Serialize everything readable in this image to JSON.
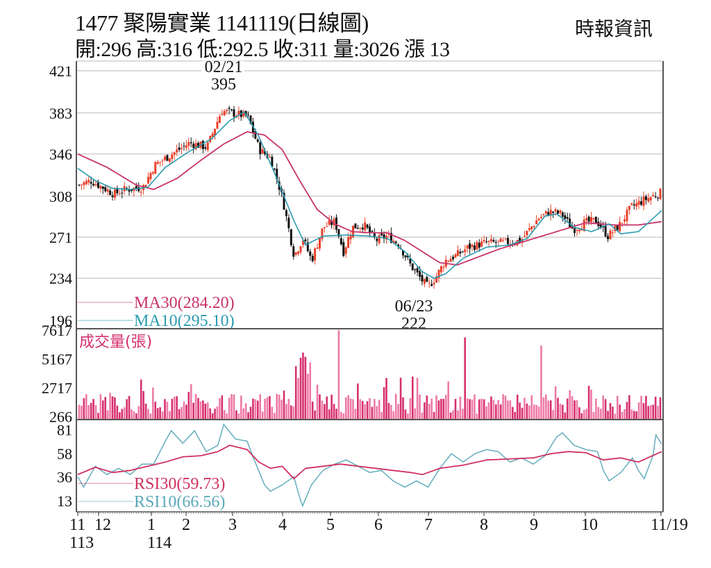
{
  "header": {
    "title": "1477  聚陽實業 1141119(日線圖)",
    "stock_code": "1477",
    "stock_name": "聚陽實業",
    "date": "1141119",
    "chart_kind": "日線圖",
    "ohlc_line": "開:296 高:316 低:292.5 收:311 量:3026 漲 13",
    "open": "296",
    "high": "316",
    "low": "292.5",
    "close": "311",
    "volume": "3026",
    "change": "漲 13",
    "brand": "時報資訊"
  },
  "colors": {
    "up": "#e8402a",
    "down": "#111111",
    "ma30": "#c8336b",
    "ma10": "#2b9bb0",
    "volume": "#d6306e",
    "volume_light": "#ee7aa6",
    "rsi30": "#d0305f",
    "rsi10": "#5aa8b8",
    "grid": "#cfcfcf",
    "axis": "#555555"
  },
  "chart_data": [
    {
      "type": "candlestick",
      "title": "1477 聚陽實業 1141119(日線圖)",
      "ylabel": "Price",
      "yticks": [
        196,
        234,
        271,
        308,
        346,
        383,
        421
      ],
      "ylim": [
        196,
        421
      ],
      "grid": true,
      "x_month_ticks": [
        "11",
        "12",
        "1",
        "2",
        "3",
        "4",
        "5",
        "6",
        "7",
        "8",
        "9",
        "10",
        "11/19"
      ],
      "x_year_labels": [
        {
          "label": "113",
          "under": "11"
        },
        {
          "label": "114",
          "under": "1"
        }
      ],
      "annotations": [
        {
          "date": "02/21",
          "value": "395",
          "type": "high"
        },
        {
          "date": "06/23",
          "value": "222",
          "type": "low"
        }
      ],
      "legend": [
        {
          "name": "MA30",
          "label": "MA30(284.20)",
          "value": 284.2
        },
        {
          "name": "MA10",
          "label": "MA10(295.10)",
          "value": 295.1
        }
      ],
      "close_path": [
        {
          "x": 0.0,
          "v": 318
        },
        {
          "x": 0.02,
          "v": 322
        },
        {
          "x": 0.04,
          "v": 316
        },
        {
          "x": 0.06,
          "v": 310
        },
        {
          "x": 0.08,
          "v": 314
        },
        {
          "x": 0.11,
          "v": 316
        },
        {
          "x": 0.13,
          "v": 336
        },
        {
          "x": 0.16,
          "v": 346
        },
        {
          "x": 0.19,
          "v": 356
        },
        {
          "x": 0.22,
          "v": 352
        },
        {
          "x": 0.245,
          "v": 385
        },
        {
          "x": 0.27,
          "v": 382
        },
        {
          "x": 0.29,
          "v": 380
        },
        {
          "x": 0.31,
          "v": 350
        },
        {
          "x": 0.33,
          "v": 342
        },
        {
          "x": 0.35,
          "v": 306
        },
        {
          "x": 0.37,
          "v": 254
        },
        {
          "x": 0.385,
          "v": 270
        },
        {
          "x": 0.4,
          "v": 250
        },
        {
          "x": 0.42,
          "v": 280
        },
        {
          "x": 0.44,
          "v": 285
        },
        {
          "x": 0.455,
          "v": 258
        },
        {
          "x": 0.47,
          "v": 280
        },
        {
          "x": 0.49,
          "v": 282
        },
        {
          "x": 0.51,
          "v": 268
        },
        {
          "x": 0.53,
          "v": 272
        },
        {
          "x": 0.55,
          "v": 265
        },
        {
          "x": 0.57,
          "v": 246
        },
        {
          "x": 0.59,
          "v": 232
        },
        {
          "x": 0.6,
          "v": 226
        },
        {
          "x": 0.615,
          "v": 236
        },
        {
          "x": 0.63,
          "v": 250
        },
        {
          "x": 0.65,
          "v": 255
        },
        {
          "x": 0.67,
          "v": 262
        },
        {
          "x": 0.7,
          "v": 266
        },
        {
          "x": 0.73,
          "v": 266
        },
        {
          "x": 0.76,
          "v": 268
        },
        {
          "x": 0.79,
          "v": 288
        },
        {
          "x": 0.81,
          "v": 294
        },
        {
          "x": 0.83,
          "v": 292
        },
        {
          "x": 0.85,
          "v": 278
        },
        {
          "x": 0.87,
          "v": 284
        },
        {
          "x": 0.89,
          "v": 286
        },
        {
          "x": 0.91,
          "v": 272
        },
        {
          "x": 0.93,
          "v": 282
        },
        {
          "x": 0.95,
          "v": 298
        },
        {
          "x": 0.97,
          "v": 304
        },
        {
          "x": 1.0,
          "v": 311
        }
      ],
      "ma30_path": [
        {
          "x": 0.0,
          "v": 346
        },
        {
          "x": 0.05,
          "v": 334
        },
        {
          "x": 0.1,
          "v": 318
        },
        {
          "x": 0.13,
          "v": 314
        },
        {
          "x": 0.17,
          "v": 324
        },
        {
          "x": 0.21,
          "v": 340
        },
        {
          "x": 0.25,
          "v": 355
        },
        {
          "x": 0.29,
          "v": 366
        },
        {
          "x": 0.32,
          "v": 363
        },
        {
          "x": 0.35,
          "v": 350
        },
        {
          "x": 0.38,
          "v": 322
        },
        {
          "x": 0.41,
          "v": 296
        },
        {
          "x": 0.44,
          "v": 283
        },
        {
          "x": 0.47,
          "v": 276
        },
        {
          "x": 0.5,
          "v": 275
        },
        {
          "x": 0.53,
          "v": 275
        },
        {
          "x": 0.56,
          "v": 268
        },
        {
          "x": 0.59,
          "v": 258
        },
        {
          "x": 0.62,
          "v": 248
        },
        {
          "x": 0.65,
          "v": 246
        },
        {
          "x": 0.68,
          "v": 252
        },
        {
          "x": 0.72,
          "v": 260
        },
        {
          "x": 0.77,
          "v": 268
        },
        {
          "x": 0.82,
          "v": 276
        },
        {
          "x": 0.87,
          "v": 284
        },
        {
          "x": 0.92,
          "v": 282
        },
        {
          "x": 0.96,
          "v": 282
        },
        {
          "x": 1.0,
          "v": 285
        }
      ],
      "ma10_path": [
        {
          "x": 0.0,
          "v": 333
        },
        {
          "x": 0.03,
          "v": 322
        },
        {
          "x": 0.06,
          "v": 315
        },
        {
          "x": 0.09,
          "v": 314
        },
        {
          "x": 0.12,
          "v": 316
        },
        {
          "x": 0.15,
          "v": 334
        },
        {
          "x": 0.19,
          "v": 348
        },
        {
          "x": 0.23,
          "v": 360
        },
        {
          "x": 0.26,
          "v": 376
        },
        {
          "x": 0.285,
          "v": 384
        },
        {
          "x": 0.31,
          "v": 362
        },
        {
          "x": 0.34,
          "v": 325
        },
        {
          "x": 0.37,
          "v": 286
        },
        {
          "x": 0.39,
          "v": 264
        },
        {
          "x": 0.42,
          "v": 272
        },
        {
          "x": 0.46,
          "v": 273
        },
        {
          "x": 0.5,
          "v": 272
        },
        {
          "x": 0.53,
          "v": 270
        },
        {
          "x": 0.56,
          "v": 258
        },
        {
          "x": 0.59,
          "v": 240
        },
        {
          "x": 0.61,
          "v": 234
        },
        {
          "x": 0.63,
          "v": 238
        },
        {
          "x": 0.66,
          "v": 252
        },
        {
          "x": 0.7,
          "v": 262
        },
        {
          "x": 0.74,
          "v": 264
        },
        {
          "x": 0.77,
          "v": 270
        },
        {
          "x": 0.8,
          "v": 290
        },
        {
          "x": 0.82,
          "v": 292
        },
        {
          "x": 0.85,
          "v": 280
        },
        {
          "x": 0.88,
          "v": 276
        },
        {
          "x": 0.91,
          "v": 283
        },
        {
          "x": 0.93,
          "v": 274
        },
        {
          "x": 0.96,
          "v": 276
        },
        {
          "x": 1.0,
          "v": 295
        }
      ]
    },
    {
      "type": "bar",
      "title": "成交量(張)",
      "ylabel": "成交量(張)",
      "yticks": [
        266,
        2717,
        5167,
        7617
      ],
      "ylim": [
        0,
        7617
      ],
      "peaks": [
        {
          "x": 0.445,
          "v": 7617
        },
        {
          "x": 0.665,
          "v": 7000
        },
        {
          "x": 0.795,
          "v": 6300
        },
        {
          "x": 0.385,
          "v": 5700
        }
      ]
    },
    {
      "type": "line",
      "title": "RSI",
      "yticks": [
        13,
        36,
        58,
        81
      ],
      "ylim": [
        5,
        88
      ],
      "legend": [
        {
          "name": "RSI30",
          "label": "RSI30(59.73)",
          "value": 59.73
        },
        {
          "name": "RSI10",
          "label": "RSI10(66.56)",
          "value": 66.56
        }
      ],
      "rsi30_path": [
        {
          "x": 0.0,
          "v": 38
        },
        {
          "x": 0.03,
          "v": 45
        },
        {
          "x": 0.06,
          "v": 40
        },
        {
          "x": 0.09,
          "v": 42
        },
        {
          "x": 0.12,
          "v": 46
        },
        {
          "x": 0.15,
          "v": 50
        },
        {
          "x": 0.18,
          "v": 55
        },
        {
          "x": 0.21,
          "v": 56
        },
        {
          "x": 0.24,
          "v": 60
        },
        {
          "x": 0.26,
          "v": 66
        },
        {
          "x": 0.29,
          "v": 62
        },
        {
          "x": 0.31,
          "v": 50
        },
        {
          "x": 0.33,
          "v": 44
        },
        {
          "x": 0.35,
          "v": 46
        },
        {
          "x": 0.37,
          "v": 34
        },
        {
          "x": 0.39,
          "v": 44
        },
        {
          "x": 0.42,
          "v": 46
        },
        {
          "x": 0.45,
          "v": 48
        },
        {
          "x": 0.48,
          "v": 46
        },
        {
          "x": 0.51,
          "v": 44
        },
        {
          "x": 0.54,
          "v": 42
        },
        {
          "x": 0.57,
          "v": 40
        },
        {
          "x": 0.59,
          "v": 38
        },
        {
          "x": 0.62,
          "v": 44
        },
        {
          "x": 0.66,
          "v": 47
        },
        {
          "x": 0.7,
          "v": 52
        },
        {
          "x": 0.74,
          "v": 53
        },
        {
          "x": 0.78,
          "v": 54
        },
        {
          "x": 0.81,
          "v": 58
        },
        {
          "x": 0.84,
          "v": 60
        },
        {
          "x": 0.87,
          "v": 59
        },
        {
          "x": 0.9,
          "v": 52
        },
        {
          "x": 0.93,
          "v": 54
        },
        {
          "x": 0.96,
          "v": 50
        },
        {
          "x": 1.0,
          "v": 60
        }
      ],
      "rsi10_path": [
        {
          "x": 0.0,
          "v": 36
        },
        {
          "x": 0.01,
          "v": 26
        },
        {
          "x": 0.03,
          "v": 46
        },
        {
          "x": 0.05,
          "v": 38
        },
        {
          "x": 0.07,
          "v": 44
        },
        {
          "x": 0.09,
          "v": 38
        },
        {
          "x": 0.11,
          "v": 48
        },
        {
          "x": 0.13,
          "v": 48
        },
        {
          "x": 0.15,
          "v": 70
        },
        {
          "x": 0.16,
          "v": 80
        },
        {
          "x": 0.18,
          "v": 68
        },
        {
          "x": 0.2,
          "v": 80
        },
        {
          "x": 0.22,
          "v": 60
        },
        {
          "x": 0.24,
          "v": 66
        },
        {
          "x": 0.25,
          "v": 86
        },
        {
          "x": 0.27,
          "v": 72
        },
        {
          "x": 0.29,
          "v": 70
        },
        {
          "x": 0.3,
          "v": 55
        },
        {
          "x": 0.32,
          "v": 28
        },
        {
          "x": 0.33,
          "v": 22
        },
        {
          "x": 0.35,
          "v": 28
        },
        {
          "x": 0.37,
          "v": 36
        },
        {
          "x": 0.38,
          "v": 16
        },
        {
          "x": 0.385,
          "v": 8
        },
        {
          "x": 0.4,
          "v": 28
        },
        {
          "x": 0.42,
          "v": 42
        },
        {
          "x": 0.44,
          "v": 48
        },
        {
          "x": 0.46,
          "v": 52
        },
        {
          "x": 0.48,
          "v": 46
        },
        {
          "x": 0.5,
          "v": 40
        },
        {
          "x": 0.52,
          "v": 42
        },
        {
          "x": 0.54,
          "v": 32
        },
        {
          "x": 0.56,
          "v": 26
        },
        {
          "x": 0.58,
          "v": 32
        },
        {
          "x": 0.6,
          "v": 26
        },
        {
          "x": 0.62,
          "v": 44
        },
        {
          "x": 0.64,
          "v": 58
        },
        {
          "x": 0.66,
          "v": 50
        },
        {
          "x": 0.68,
          "v": 58
        },
        {
          "x": 0.7,
          "v": 62
        },
        {
          "x": 0.72,
          "v": 60
        },
        {
          "x": 0.74,
          "v": 50
        },
        {
          "x": 0.76,
          "v": 54
        },
        {
          "x": 0.78,
          "v": 48
        },
        {
          "x": 0.8,
          "v": 56
        },
        {
          "x": 0.82,
          "v": 74
        },
        {
          "x": 0.83,
          "v": 78
        },
        {
          "x": 0.85,
          "v": 66
        },
        {
          "x": 0.87,
          "v": 62
        },
        {
          "x": 0.89,
          "v": 60
        },
        {
          "x": 0.9,
          "v": 42
        },
        {
          "x": 0.91,
          "v": 32
        },
        {
          "x": 0.93,
          "v": 40
        },
        {
          "x": 0.95,
          "v": 54
        },
        {
          "x": 0.96,
          "v": 42
        },
        {
          "x": 0.97,
          "v": 34
        },
        {
          "x": 0.985,
          "v": 56
        },
        {
          "x": 0.99,
          "v": 76
        },
        {
          "x": 1.0,
          "v": 67
        }
      ]
    }
  ]
}
